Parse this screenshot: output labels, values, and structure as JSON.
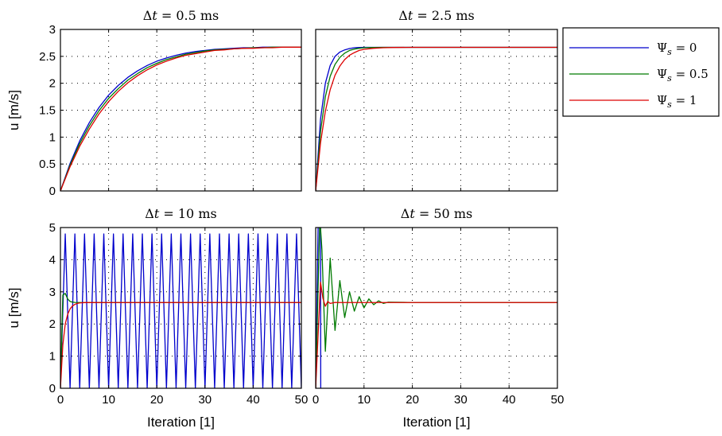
{
  "chart_data": [
    {
      "type": "line",
      "title": "Δt = 0.5 ms",
      "title_parts": {
        "delta": "Δ",
        "var": "t",
        "rest": " = 0.5 ms"
      },
      "ylabel": "u [m/s]",
      "xlabel": "",
      "xlim": [
        0,
        50
      ],
      "ylim": [
        0,
        3
      ],
      "xticks": [
        0,
        10,
        20,
        30,
        40,
        50
      ],
      "yticks": [
        0,
        0.5,
        1,
        1.5,
        2,
        2.5,
        3
      ],
      "show_x_tick_labels": false,
      "show_y_tick_labels": true,
      "grid": true,
      "x": [
        0,
        2,
        4,
        6,
        8,
        10,
        12,
        14,
        16,
        18,
        20,
        22,
        24,
        26,
        28,
        30,
        32,
        34,
        36,
        38,
        40,
        42,
        44,
        46,
        48,
        50
      ],
      "series": [
        {
          "name": "Ψs = 0",
          "color": "#0000cc",
          "values": [
            0,
            0.51,
            0.93,
            1.27,
            1.55,
            1.78,
            1.96,
            2.11,
            2.23,
            2.33,
            2.41,
            2.47,
            2.52,
            2.56,
            2.59,
            2.61,
            2.63,
            2.64,
            2.65,
            2.66,
            2.66,
            2.67,
            2.67,
            2.67,
            2.67,
            2.67
          ]
        },
        {
          "name": "Ψs = 0.5",
          "color": "#007a00",
          "values": [
            0,
            0.48,
            0.88,
            1.21,
            1.49,
            1.72,
            1.9,
            2.06,
            2.18,
            2.29,
            2.37,
            2.44,
            2.49,
            2.54,
            2.57,
            2.6,
            2.62,
            2.63,
            2.64,
            2.65,
            2.66,
            2.66,
            2.67,
            2.67,
            2.67,
            2.67
          ]
        },
        {
          "name": "Ψs = 1",
          "color": "#dd0000",
          "values": [
            0,
            0.45,
            0.83,
            1.15,
            1.43,
            1.66,
            1.85,
            2.01,
            2.14,
            2.25,
            2.34,
            2.41,
            2.47,
            2.52,
            2.55,
            2.58,
            2.61,
            2.62,
            2.64,
            2.65,
            2.65,
            2.66,
            2.66,
            2.67,
            2.67,
            2.67
          ]
        }
      ]
    },
    {
      "type": "line",
      "title": "Δt = 2.5 ms",
      "title_parts": {
        "delta": "Δ",
        "var": "t",
        "rest": " = 2.5 ms"
      },
      "ylabel": "",
      "xlabel": "",
      "xlim": [
        0,
        50
      ],
      "ylim": [
        0,
        3
      ],
      "xticks": [
        0,
        10,
        20,
        30,
        40,
        50
      ],
      "yticks": [
        0,
        0.5,
        1,
        1.5,
        2,
        2.5,
        3
      ],
      "show_x_tick_labels": false,
      "show_y_tick_labels": false,
      "grid": true,
      "x": [
        0,
        1,
        2,
        3,
        4,
        5,
        6,
        7,
        8,
        9,
        10,
        12,
        14,
        16,
        20,
        30,
        40,
        50
      ],
      "series": [
        {
          "name": "Ψs = 0",
          "color": "#0000cc",
          "values": [
            0,
            1.33,
            2.0,
            2.33,
            2.5,
            2.58,
            2.62,
            2.645,
            2.66,
            2.665,
            2.667,
            2.667,
            2.667,
            2.667,
            2.667,
            2.667,
            2.667,
            2.667
          ]
        },
        {
          "name": "Ψs = 0.5",
          "color": "#007a00",
          "values": [
            0,
            1.1,
            1.75,
            2.13,
            2.35,
            2.48,
            2.56,
            2.61,
            2.635,
            2.65,
            2.66,
            2.665,
            2.667,
            2.667,
            2.667,
            2.667,
            2.667,
            2.667
          ]
        },
        {
          "name": "Ψs = 1",
          "color": "#dd0000",
          "values": [
            0,
            0.89,
            1.48,
            1.88,
            2.15,
            2.32,
            2.44,
            2.52,
            2.57,
            2.61,
            2.63,
            2.65,
            2.66,
            2.665,
            2.667,
            2.667,
            2.667,
            2.667
          ]
        }
      ]
    },
    {
      "type": "line",
      "title": "Δt = 10 ms",
      "title_parts": {
        "delta": "Δ",
        "var": "t",
        "rest": " = 10 ms"
      },
      "ylabel": "u [m/s]",
      "xlabel": "Iteration [1]",
      "xlim": [
        0,
        50
      ],
      "ylim": [
        0,
        5
      ],
      "xticks": [
        0,
        10,
        20,
        30,
        40,
        50
      ],
      "yticks": [
        0,
        1,
        2,
        3,
        4,
        5
      ],
      "show_x_tick_labels": true,
      "show_y_tick_labels": true,
      "grid": true,
      "oscillating_series": {
        "name": "Ψs = 0",
        "color": "#0000cc",
        "start": 0,
        "period": 2,
        "low": 0,
        "high": 4.8,
        "until": 50
      },
      "series": [
        {
          "name": "Ψs = 0.5",
          "color": "#007a00",
          "x": [
            0,
            0.5,
            1,
            1.5,
            2,
            2.5,
            3,
            4,
            5,
            10,
            20,
            30,
            40,
            50
          ],
          "values": [
            0,
            2.9,
            2.95,
            2.78,
            2.7,
            2.68,
            2.67,
            2.667,
            2.667,
            2.667,
            2.667,
            2.667,
            2.667,
            2.667
          ]
        },
        {
          "name": "Ψs = 1",
          "color": "#dd0000",
          "x": [
            0,
            0.5,
            1,
            1.5,
            2,
            2.5,
            3,
            3.5,
            4,
            5,
            10,
            20,
            30,
            40,
            50
          ],
          "values": [
            0,
            1.35,
            2.0,
            2.3,
            2.47,
            2.56,
            2.61,
            2.64,
            2.655,
            2.665,
            2.667,
            2.667,
            2.667,
            2.667,
            2.667
          ]
        }
      ]
    },
    {
      "type": "line",
      "title": "Δt = 50 ms",
      "title_parts": {
        "delta": "Δ",
        "var": "t",
        "rest": " = 50 ms"
      },
      "ylabel": "",
      "xlabel": "Iteration [1]",
      "xlim": [
        0,
        50
      ],
      "ylim": [
        0,
        5
      ],
      "xticks": [
        0,
        10,
        20,
        30,
        40,
        50
      ],
      "yticks": [
        0,
        1,
        2,
        3,
        4,
        5
      ],
      "show_x_tick_labels": true,
      "show_y_tick_labels": false,
      "grid": true,
      "series": [
        {
          "name": "Ψs = 0",
          "color": "#0000cc",
          "x": [
            0,
            0.5,
            1,
            1.05
          ],
          "values": [
            0,
            5.0,
            5.0,
            0
          ]
        },
        {
          "name": "Ψs = 0.5",
          "color": "#007a00",
          "x": [
            0,
            0.8,
            1,
            1.3,
            2,
            3,
            4,
            5,
            6,
            7,
            8,
            9,
            10,
            11,
            12,
            13,
            14,
            15,
            20,
            30,
            40,
            50
          ],
          "values": [
            0,
            5.0,
            5.0,
            4.3,
            1.15,
            4.05,
            1.8,
            3.35,
            2.2,
            3.0,
            2.4,
            2.85,
            2.5,
            2.78,
            2.6,
            2.72,
            2.64,
            2.68,
            2.667,
            2.667,
            2.667,
            2.667
          ]
        },
        {
          "name": "Ψs = 1",
          "color": "#dd0000",
          "x": [
            0,
            1,
            1.5,
            2,
            2.5,
            3,
            4,
            5,
            10,
            20,
            30,
            40,
            50
          ],
          "values": [
            0,
            3.3,
            2.8,
            2.55,
            2.7,
            2.64,
            2.67,
            2.667,
            2.667,
            2.667,
            2.667,
            2.667,
            2.667
          ]
        }
      ]
    }
  ],
  "legend": {
    "placement": "right-top",
    "entries": [
      {
        "base": "Ψ",
        "sub": "s",
        "rest": " = 0",
        "color": "#0000cc"
      },
      {
        "base": "Ψ",
        "sub": "s",
        "rest": " = 0.5",
        "color": "#007a00"
      },
      {
        "base": "Ψ",
        "sub": "s",
        "rest": " = 1",
        "color": "#dd0000"
      }
    ]
  }
}
